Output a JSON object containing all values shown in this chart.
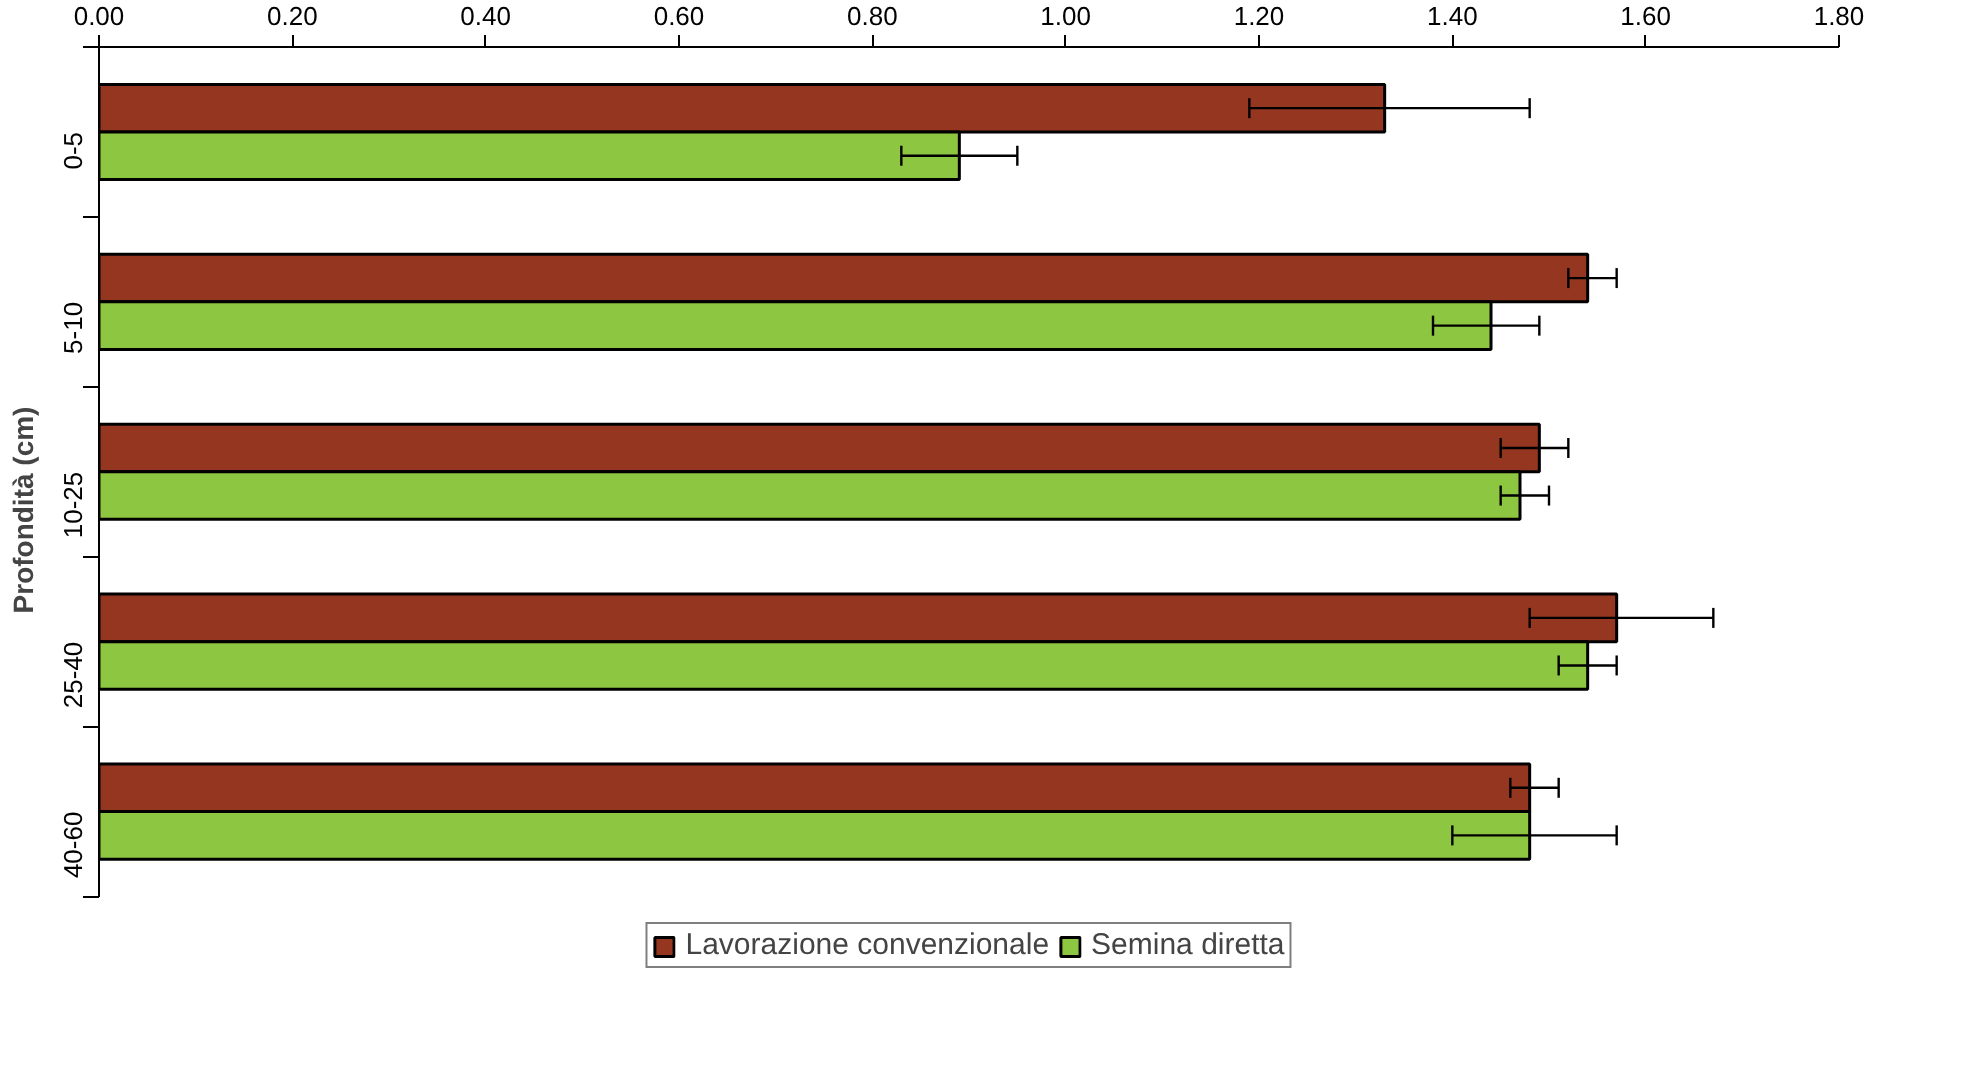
{
  "chart_data": {
    "type": "bar",
    "orientation": "horizontal",
    "ylabel": "Profondità (cm)",
    "categories": [
      "0-5",
      "5-10",
      "10-25",
      "25-40",
      "40-60"
    ],
    "series": [
      {
        "name": "Lavorazione convenzionale",
        "color": "#943620",
        "values": [
          1.33,
          1.54,
          1.49,
          1.57,
          1.48
        ],
        "errors": [
          [
            1.19,
            1.48
          ],
          [
            1.52,
            1.57
          ],
          [
            1.45,
            1.52
          ],
          [
            1.48,
            1.67
          ],
          [
            1.46,
            1.51
          ]
        ]
      },
      {
        "name": "Semina diretta",
        "color": "#8dc641",
        "values": [
          0.89,
          1.44,
          1.47,
          1.54,
          1.48
        ],
        "errors": [
          [
            0.83,
            0.95
          ],
          [
            1.38,
            1.49
          ],
          [
            1.45,
            1.5
          ],
          [
            1.51,
            1.57
          ],
          [
            1.4,
            1.57
          ]
        ]
      }
    ],
    "xlim": [
      0,
      1.8
    ],
    "xticks": [
      {
        "value": 0,
        "label": "0.00"
      },
      {
        "value": 0.2,
        "label": "0.20"
      },
      {
        "value": 0.4,
        "label": "0.40"
      },
      {
        "value": 0.6,
        "label": "0.60"
      },
      {
        "value": 0.8,
        "label": "0.80"
      },
      {
        "value": 1.0,
        "label": "1.00"
      },
      {
        "value": 1.2,
        "label": "1.20"
      },
      {
        "value": 1.4,
        "label": "1.40"
      },
      {
        "value": 1.6,
        "label": "1.60"
      },
      {
        "value": 1.8,
        "label": "1.80"
      }
    ],
    "grid": false,
    "legend": "bottom"
  }
}
